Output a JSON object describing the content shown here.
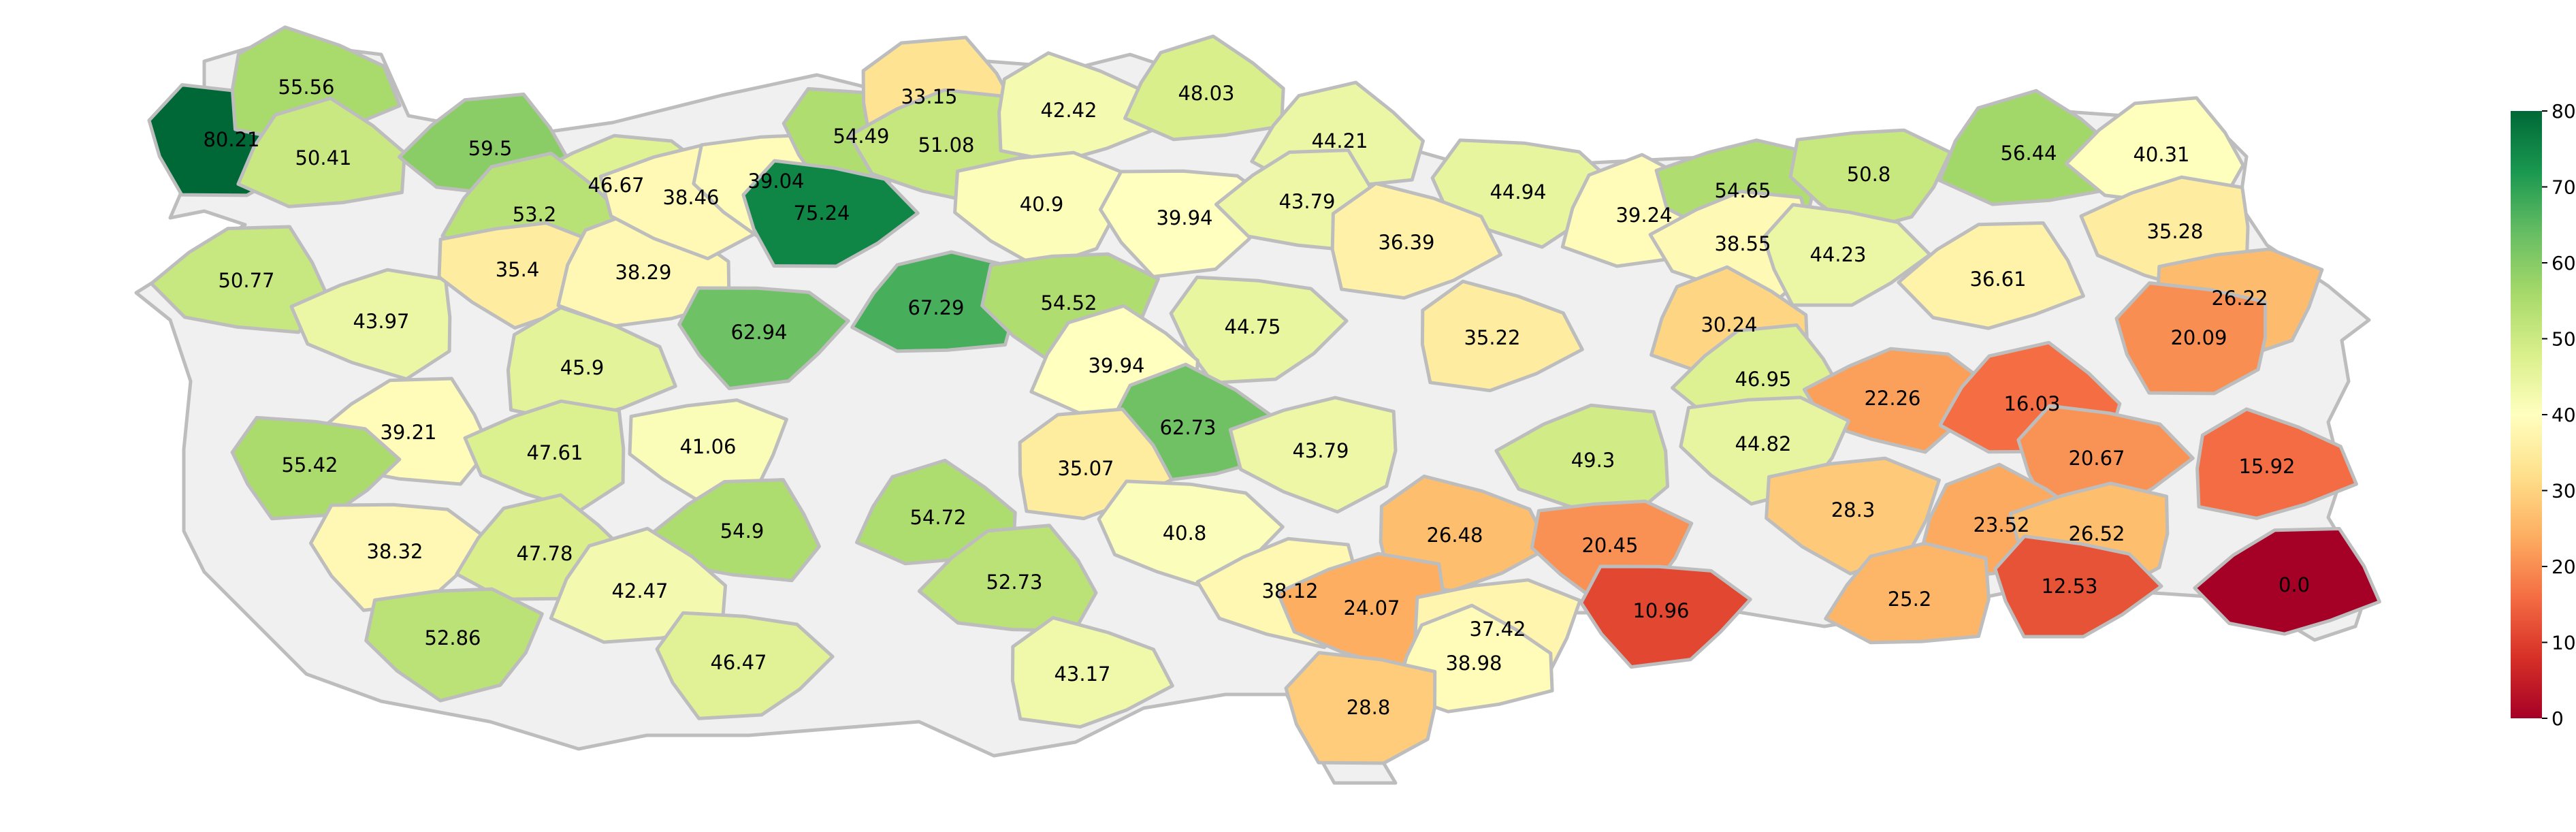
{
  "colorbar": {
    "min": 0,
    "max": 80,
    "ticks": [
      "0",
      "10",
      "20",
      "30",
      "40",
      "50",
      "60",
      "70",
      "80"
    ],
    "colormap": [
      "#a50026",
      "#d73027",
      "#f46d43",
      "#fdae61",
      "#fee08b",
      "#ffffbf",
      "#d9ef8b",
      "#a6d96a",
      "#66bd63",
      "#1a9850",
      "#006837"
    ]
  },
  "regions": [
    {
      "label": "80.21",
      "value": 80.21
    },
    {
      "label": "55.56",
      "value": 55.56
    },
    {
      "label": "50.41",
      "value": 50.41
    },
    {
      "label": "59.5",
      "value": 59.5
    },
    {
      "label": "46.67",
      "value": 46.67
    },
    {
      "label": "53.2",
      "value": 53.2
    },
    {
      "label": "50.77",
      "value": 50.77
    },
    {
      "label": "43.97",
      "value": 43.97
    },
    {
      "label": "35.4",
      "value": 35.4
    },
    {
      "label": "38.29",
      "value": 38.29
    },
    {
      "label": "38.46",
      "value": 38.46
    },
    {
      "label": "39.04",
      "value": 39.04
    },
    {
      "label": "54.49",
      "value": 54.49
    },
    {
      "label": "33.15",
      "value": 33.15
    },
    {
      "label": "51.08",
      "value": 51.08
    },
    {
      "label": "75.24",
      "value": 75.24
    },
    {
      "label": "42.42",
      "value": 42.42
    },
    {
      "label": "48.03",
      "value": 48.03
    },
    {
      "label": "40.9",
      "value": 40.9
    },
    {
      "label": "39.94",
      "value": 39.94
    },
    {
      "label": "44.21",
      "value": 44.21
    },
    {
      "label": "43.79",
      "value": 43.79
    },
    {
      "label": "44.94",
      "value": 44.94
    },
    {
      "label": "36.39",
      "value": 36.39
    },
    {
      "label": "39.24",
      "value": 39.24
    },
    {
      "label": "54.65",
      "value": 54.65
    },
    {
      "label": "50.8",
      "value": 50.8
    },
    {
      "label": "56.44",
      "value": 56.44
    },
    {
      "label": "40.31",
      "value": 40.31
    },
    {
      "label": "38.55",
      "value": 38.55
    },
    {
      "label": "44.23",
      "value": 44.23
    },
    {
      "label": "36.61",
      "value": 36.61
    },
    {
      "label": "35.28",
      "value": 35.28
    },
    {
      "label": "26.22",
      "value": 26.22
    },
    {
      "label": "62.94",
      "value": 62.94
    },
    {
      "label": "67.29",
      "value": 67.29
    },
    {
      "label": "54.52",
      "value": 54.52
    },
    {
      "label": "44.75",
      "value": 44.75
    },
    {
      "label": "35.22",
      "value": 35.22
    },
    {
      "label": "30.24",
      "value": 30.24
    },
    {
      "label": "20.09",
      "value": 20.09
    },
    {
      "label": "45.9",
      "value": 45.9
    },
    {
      "label": "39.94",
      "value": 39.94
    },
    {
      "label": "46.95",
      "value": 46.95
    },
    {
      "label": "22.26",
      "value": 22.26
    },
    {
      "label": "16.03",
      "value": 16.03
    },
    {
      "label": "39.21",
      "value": 39.21
    },
    {
      "label": "47.61",
      "value": 47.61
    },
    {
      "label": "41.06",
      "value": 41.06
    },
    {
      "label": "62.73",
      "value": 62.73
    },
    {
      "label": "43.79",
      "value": 43.79
    },
    {
      "label": "44.82",
      "value": 44.82
    },
    {
      "label": "55.42",
      "value": 55.42
    },
    {
      "label": "35.07",
      "value": 35.07
    },
    {
      "label": "49.3",
      "value": 49.3
    },
    {
      "label": "20.67",
      "value": 20.67
    },
    {
      "label": "15.92",
      "value": 15.92
    },
    {
      "label": "54.72",
      "value": 54.72
    },
    {
      "label": "28.3",
      "value": 28.3
    },
    {
      "label": "38.32",
      "value": 38.32
    },
    {
      "label": "47.78",
      "value": 47.78
    },
    {
      "label": "54.9",
      "value": 54.9
    },
    {
      "label": "40.8",
      "value": 40.8
    },
    {
      "label": "26.48",
      "value": 26.48
    },
    {
      "label": "23.52",
      "value": 23.52
    },
    {
      "label": "26.52",
      "value": 26.52
    },
    {
      "label": "20.45",
      "value": 20.45
    },
    {
      "label": "42.47",
      "value": 42.47
    },
    {
      "label": "52.73",
      "value": 52.73
    },
    {
      "label": "38.12",
      "value": 38.12
    },
    {
      "label": "12.53",
      "value": 12.53
    },
    {
      "label": "0.0",
      "value": 0.0
    },
    {
      "label": "24.07",
      "value": 24.07
    },
    {
      "label": "37.42",
      "value": 37.42
    },
    {
      "label": "10.96",
      "value": 10.96
    },
    {
      "label": "25.2",
      "value": 25.2
    },
    {
      "label": "52.86",
      "value": 52.86
    },
    {
      "label": "46.47",
      "value": 46.47
    },
    {
      "label": "43.17",
      "value": 43.17
    },
    {
      "label": "38.98",
      "value": 38.98
    },
    {
      "label": "28.8",
      "value": 28.8
    }
  ]
}
